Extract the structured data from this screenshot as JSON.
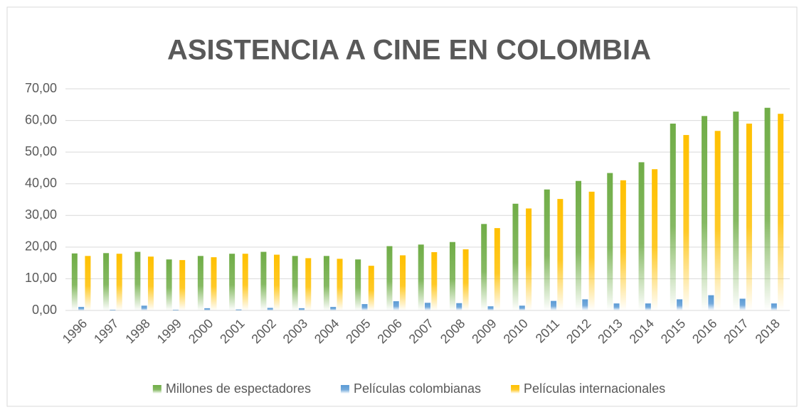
{
  "chart_data": {
    "type": "bar",
    "title": "ASISTENCIA A CINE EN COLOMBIA",
    "categories": [
      "1996",
      "1997",
      "1998",
      "1999",
      "2000",
      "2001",
      "2002",
      "2003",
      "2004",
      "2005",
      "2006",
      "2007",
      "2008",
      "2009",
      "2010",
      "2011",
      "2012",
      "2013",
      "2014",
      "2015",
      "2016",
      "2017",
      "2018"
    ],
    "series": [
      {
        "name": "Millones de espectadores",
        "color": "#70ad47",
        "values": [
          18.0,
          18.1,
          18.5,
          16.1,
          17.2,
          17.9,
          18.5,
          17.2,
          17.2,
          16.1,
          20.3,
          20.8,
          21.6,
          27.3,
          33.7,
          38.2,
          40.9,
          43.4,
          46.8,
          59.0,
          61.4,
          62.8,
          64.0
        ]
      },
      {
        "name": "Películas colombianas",
        "color": "#5b9bd5",
        "values": [
          1.1,
          0.2,
          1.5,
          0.2,
          0.7,
          0.3,
          0.8,
          0.7,
          1.1,
          2.0,
          2.9,
          2.4,
          2.3,
          1.3,
          1.5,
          3.0,
          3.5,
          2.2,
          2.2,
          3.5,
          4.8,
          3.7,
          2.2
        ]
      },
      {
        "name": "Películas internacionales",
        "color": "#ffc000",
        "values": [
          17.2,
          17.9,
          17.0,
          15.9,
          16.8,
          17.9,
          17.6,
          16.5,
          16.3,
          14.1,
          17.4,
          18.4,
          19.3,
          26.0,
          32.2,
          35.2,
          37.5,
          41.1,
          44.6,
          55.4,
          56.7,
          59.0,
          62.1
        ]
      }
    ],
    "ylim": [
      0,
      70
    ],
    "yticks": [
      {
        "value": 0,
        "label": "0,00"
      },
      {
        "value": 10,
        "label": "10,00"
      },
      {
        "value": 20,
        "label": "20,00"
      },
      {
        "value": 30,
        "label": "30,00"
      },
      {
        "value": 40,
        "label": "40,00"
      },
      {
        "value": 50,
        "label": "50,00"
      },
      {
        "value": 60,
        "label": "60,00"
      },
      {
        "value": 70,
        "label": "70,00"
      }
    ],
    "grid": true,
    "legend": "bottom"
  }
}
